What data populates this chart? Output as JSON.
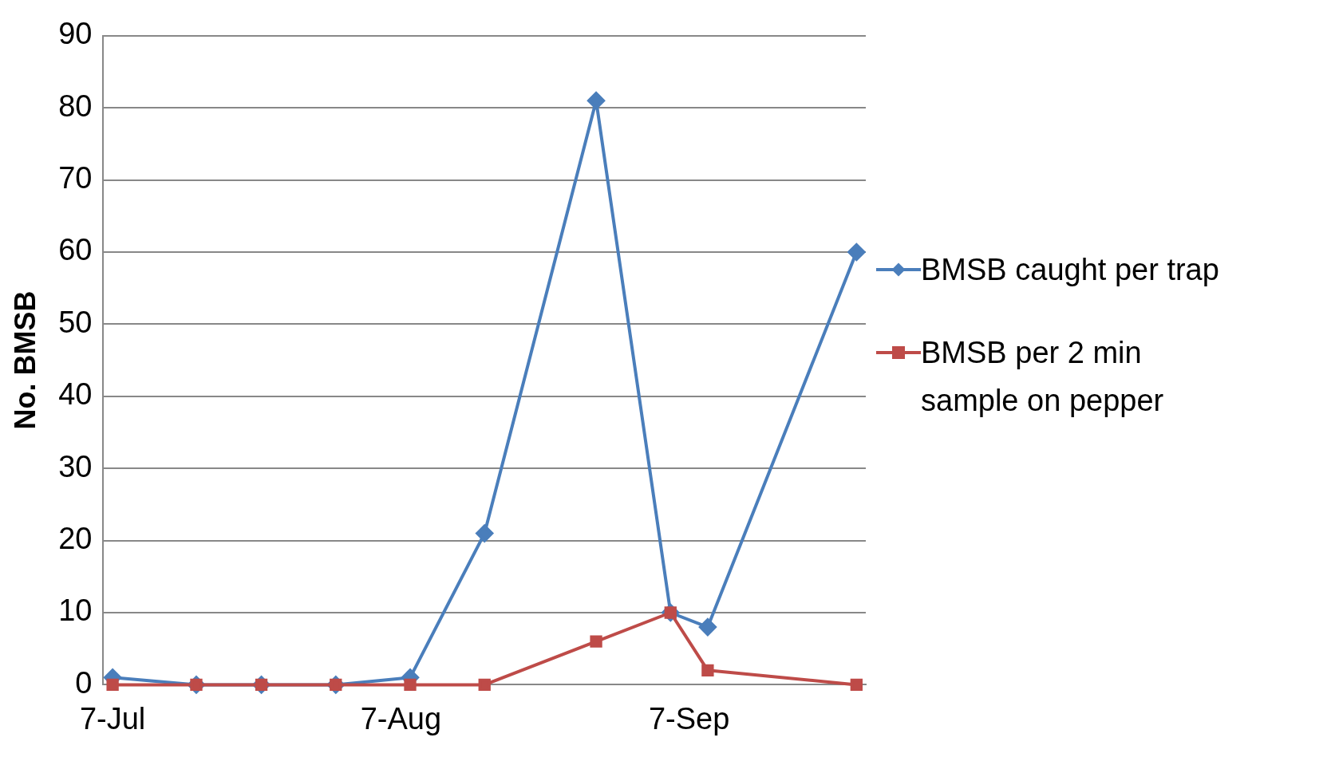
{
  "chart_data": {
    "type": "line",
    "ylabel": "No. BMSB",
    "xlim": [
      "--07-06",
      "--09-26"
    ],
    "xticks": [
      {
        "value": "--07-07",
        "label": "7-Jul"
      },
      {
        "value": "--08-07",
        "label": "7-Aug"
      },
      {
        "value": "--09-07",
        "label": "7-Sep"
      }
    ],
    "ylim": [
      0,
      90
    ],
    "yticks": [
      0,
      10,
      20,
      30,
      40,
      50,
      60,
      70,
      80,
      90
    ],
    "x": [
      "--07-07",
      "--07-16",
      "--07-23",
      "--07-31",
      "--08-08",
      "--08-16",
      "--08-28",
      "--09-05",
      "--09-09",
      "--09-25"
    ],
    "series": [
      {
        "name": "BMSB caught per trap",
        "color": "#4a7ebb",
        "marker": "diamond",
        "values": [
          1,
          0,
          0,
          0,
          1,
          21,
          81,
          10,
          8,
          60
        ]
      },
      {
        "name": "BMSB per 2 min sample on pepper",
        "color": "#be4b48",
        "marker": "square",
        "values": [
          0,
          0,
          0,
          0,
          0,
          0,
          6,
          10,
          2,
          0
        ]
      }
    ],
    "grid": "y",
    "legend": "right",
    "line_style": "solid"
  }
}
